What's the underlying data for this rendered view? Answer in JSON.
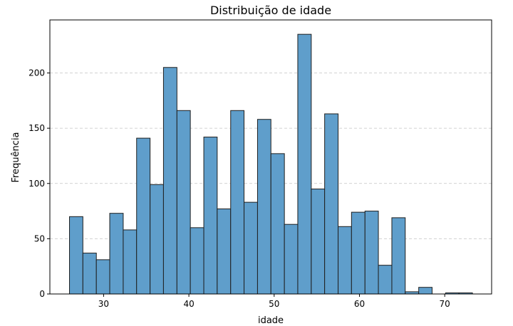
{
  "chart_data": {
    "type": "bar",
    "title": "Distribuição de idade",
    "xlabel": "idade",
    "ylabel": "Frequência",
    "xlim": [
      23.7,
      75.5
    ],
    "ylim": [
      0,
      248
    ],
    "xticks": [
      30,
      40,
      50,
      60,
      70
    ],
    "yticks": [
      0,
      50,
      100,
      150,
      200
    ],
    "grid": "y-dashed",
    "bar_color": "#5f9ecb",
    "bins": [
      {
        "x0": 26.0,
        "x1": 27.57,
        "value": 70
      },
      {
        "x0": 27.57,
        "x1": 29.15,
        "value": 37
      },
      {
        "x0": 29.15,
        "x1": 30.72,
        "value": 31
      },
      {
        "x0": 30.72,
        "x1": 32.3,
        "value": 73
      },
      {
        "x0": 32.3,
        "x1": 33.87,
        "value": 58
      },
      {
        "x0": 33.87,
        "x1": 35.45,
        "value": 141
      },
      {
        "x0": 35.45,
        "x1": 37.02,
        "value": 99
      },
      {
        "x0": 37.02,
        "x1": 38.6,
        "value": 205
      },
      {
        "x0": 38.6,
        "x1": 40.17,
        "value": 166
      },
      {
        "x0": 40.17,
        "x1": 41.75,
        "value": 60
      },
      {
        "x0": 41.75,
        "x1": 43.32,
        "value": 142
      },
      {
        "x0": 43.32,
        "x1": 44.9,
        "value": 77
      },
      {
        "x0": 44.9,
        "x1": 46.47,
        "value": 166
      },
      {
        "x0": 46.47,
        "x1": 48.05,
        "value": 83
      },
      {
        "x0": 48.05,
        "x1": 49.62,
        "value": 158
      },
      {
        "x0": 49.62,
        "x1": 51.2,
        "value": 127
      },
      {
        "x0": 51.2,
        "x1": 52.77,
        "value": 63
      },
      {
        "x0": 52.77,
        "x1": 54.35,
        "value": 235
      },
      {
        "x0": 54.35,
        "x1": 55.92,
        "value": 95
      },
      {
        "x0": 55.92,
        "x1": 57.5,
        "value": 163
      },
      {
        "x0": 57.5,
        "x1": 59.07,
        "value": 61
      },
      {
        "x0": 59.07,
        "x1": 60.65,
        "value": 74
      },
      {
        "x0": 60.65,
        "x1": 62.22,
        "value": 75
      },
      {
        "x0": 62.22,
        "x1": 63.8,
        "value": 26
      },
      {
        "x0": 63.8,
        "x1": 65.37,
        "value": 69
      },
      {
        "x0": 65.37,
        "x1": 66.95,
        "value": 2
      },
      {
        "x0": 66.95,
        "x1": 68.52,
        "value": 6
      },
      {
        "x0": 68.52,
        "x1": 70.1,
        "value": 0
      },
      {
        "x0": 70.1,
        "x1": 71.67,
        "value": 1
      },
      {
        "x0": 71.67,
        "x1": 73.25,
        "value": 1
      }
    ]
  }
}
